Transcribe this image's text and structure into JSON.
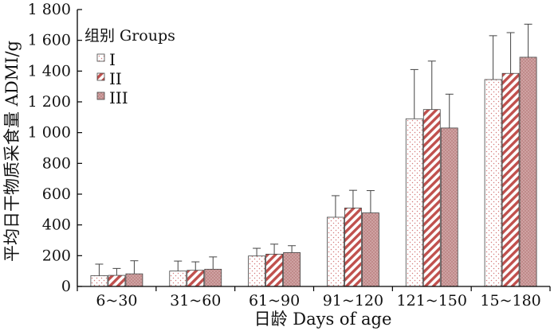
{
  "chart_data": {
    "type": "bar",
    "xlabel": "日龄  Days of age",
    "ylabel": "平均日干物质采食量  ADMI/g",
    "ylim": [
      0,
      1800
    ],
    "yticks": [
      "0",
      "200",
      "400",
      "600",
      "800",
      "1 000",
      "1 200",
      "1 400",
      "1 600",
      "1 800"
    ],
    "ytick_values": [
      0,
      200,
      400,
      600,
      800,
      1000,
      1200,
      1400,
      1600,
      1800
    ],
    "categories": [
      "6~30",
      "31~60",
      "61~90",
      "91~120",
      "121~150",
      "15~180"
    ],
    "legend_title": "组别  Groups",
    "legend_position": "top-left",
    "series": [
      {
        "name": "I",
        "values": [
          70,
          100,
          198,
          450,
          1090,
          1345
        ],
        "errors": [
          75,
          65,
          50,
          140,
          320,
          285
        ],
        "fill": "dots"
      },
      {
        "name": "II",
        "values": [
          72,
          105,
          210,
          510,
          1150,
          1385
        ],
        "errors": [
          45,
          55,
          65,
          115,
          315,
          265
        ],
        "fill": "hatch"
      },
      {
        "name": "III",
        "values": [
          82,
          112,
          220,
          478,
          1030,
          1490
        ],
        "errors": [
          85,
          80,
          45,
          145,
          220,
          215
        ],
        "fill": "dense-dots"
      }
    ],
    "colors": {
      "accent": "#c0504d",
      "bar_fill": "#c08a8a",
      "axis": "#000000"
    }
  }
}
